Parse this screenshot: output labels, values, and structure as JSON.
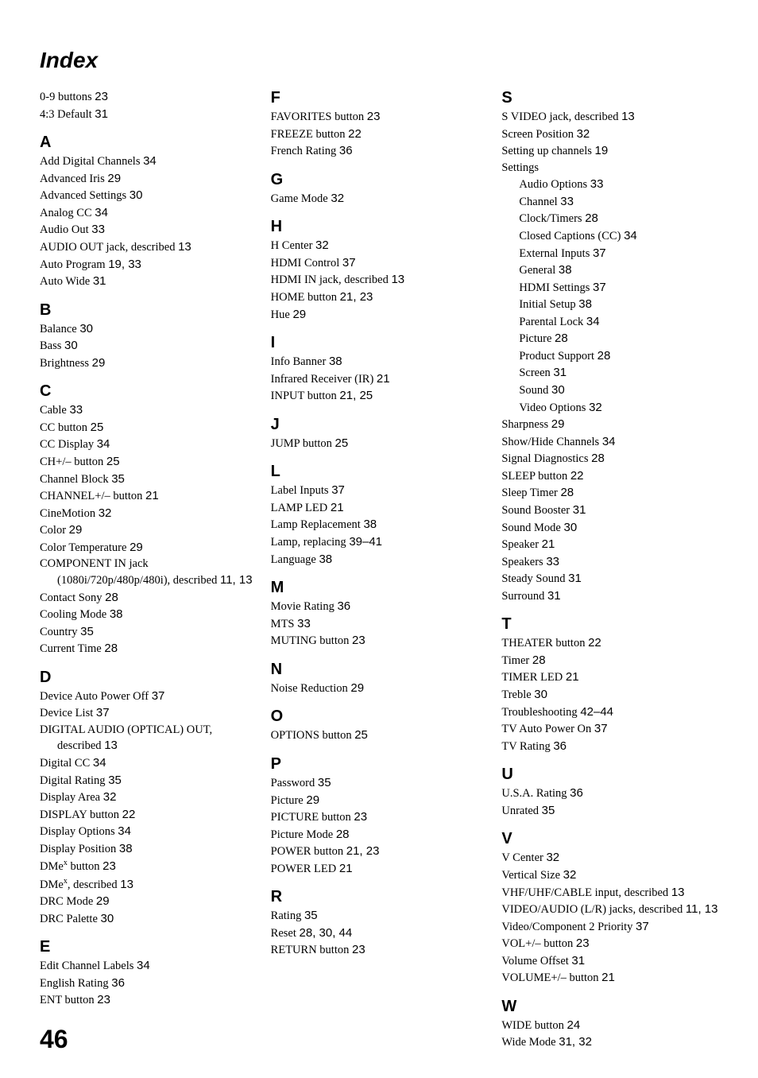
{
  "title": "Index",
  "pageNumber": "46",
  "columns": [
    {
      "blocks": [
        {
          "type": "entries_nolet",
          "entries": [
            {
              "t": "0-9 buttons ",
              "p": "23"
            },
            {
              "t": "4:3 Default ",
              "p": "31"
            }
          ]
        },
        {
          "type": "letter",
          "label": "A",
          "entries": [
            {
              "t": "Add Digital Channels ",
              "p": "34"
            },
            {
              "t": "Advanced Iris ",
              "p": "29"
            },
            {
              "t": "Advanced Settings ",
              "p": "30"
            },
            {
              "t": "Analog CC ",
              "p": "34"
            },
            {
              "t": "Audio Out ",
              "p": "33"
            },
            {
              "t": "AUDIO OUT jack, described ",
              "p": "13"
            },
            {
              "t": "Auto Program ",
              "p": "19, 33"
            },
            {
              "t": "Auto Wide ",
              "p": "31"
            }
          ]
        },
        {
          "type": "letter",
          "label": "B",
          "entries": [
            {
              "t": "Balance ",
              "p": "30"
            },
            {
              "t": "Bass ",
              "p": "30"
            },
            {
              "t": "Brightness ",
              "p": "29"
            }
          ]
        },
        {
          "type": "letter",
          "label": "C",
          "entries": [
            {
              "t": "Cable ",
              "p": "33"
            },
            {
              "t": "CC button ",
              "p": "25"
            },
            {
              "t": "CC Display ",
              "p": "34"
            },
            {
              "t": "CH+/– button ",
              "p": "25"
            },
            {
              "t": "Channel Block ",
              "p": "35"
            },
            {
              "t": "CHANNEL+/– button ",
              "p": "21"
            },
            {
              "t": "CineMotion ",
              "p": "32"
            },
            {
              "t": "Color ",
              "p": "29"
            },
            {
              "t": "Color Temperature ",
              "p": "29"
            },
            {
              "t": "COMPONENT IN jack (1080i/720p/480p/480i), described ",
              "p": "11, 13",
              "hang": true
            },
            {
              "t": "Contact Sony ",
              "p": "28"
            },
            {
              "t": "Cooling Mode ",
              "p": "38"
            },
            {
              "t": "Country ",
              "p": "35"
            },
            {
              "t": "Current Time ",
              "p": "28"
            }
          ]
        },
        {
          "type": "letter",
          "label": "D",
          "entries": [
            {
              "t": "Device Auto Power Off ",
              "p": "37"
            },
            {
              "t": "Device List ",
              "p": "37"
            },
            {
              "t": "DIGITAL AUDIO (OPTICAL) OUT, described ",
              "p": "13",
              "hang": true
            },
            {
              "t": "Digital CC ",
              "p": "34"
            },
            {
              "t": "Digital Rating ",
              "p": "35"
            },
            {
              "t": "Display Area ",
              "p": "32"
            },
            {
              "t": "DISPLAY button ",
              "p": "22"
            },
            {
              "t": "Display Options ",
              "p": "34"
            },
            {
              "t": "Display Position ",
              "p": "38"
            },
            {
              "html": "DMe<sup>x</sup> button ",
              "p": "23"
            },
            {
              "html": "DMe<sup>x</sup>, described ",
              "p": "13"
            },
            {
              "t": "DRC Mode ",
              "p": "29"
            },
            {
              "t": "DRC Palette ",
              "p": "30"
            }
          ]
        },
        {
          "type": "letter",
          "label": "E",
          "entries": [
            {
              "t": "Edit Channel Labels ",
              "p": "34"
            },
            {
              "t": "English Rating ",
              "p": "36"
            },
            {
              "t": "ENT button ",
              "p": "23"
            }
          ]
        }
      ]
    },
    {
      "blocks": [
        {
          "type": "letter",
          "label": "F",
          "first": true,
          "entries": [
            {
              "t": "FAVORITES button ",
              "p": "23"
            },
            {
              "t": "FREEZE button ",
              "p": "22"
            },
            {
              "t": "French Rating ",
              "p": "36"
            }
          ]
        },
        {
          "type": "letter",
          "label": "G",
          "entries": [
            {
              "t": "Game Mode ",
              "p": "32"
            }
          ]
        },
        {
          "type": "letter",
          "label": "H",
          "entries": [
            {
              "t": "H Center ",
              "p": "32"
            },
            {
              "t": "HDMI Control ",
              "p": "37"
            },
            {
              "t": "HDMI IN jack, described ",
              "p": "13"
            },
            {
              "t": "HOME button ",
              "p": "21, 23"
            },
            {
              "t": "Hue ",
              "p": "29"
            }
          ]
        },
        {
          "type": "letter",
          "label": "I",
          "entries": [
            {
              "t": "Info Banner ",
              "p": "38"
            },
            {
              "t": "Infrared Receiver (IR) ",
              "p": "21"
            },
            {
              "t": "INPUT button ",
              "p": "21, 25"
            }
          ]
        },
        {
          "type": "letter",
          "label": "J",
          "entries": [
            {
              "t": "JUMP button ",
              "p": "25"
            }
          ]
        },
        {
          "type": "letter",
          "label": "L",
          "entries": [
            {
              "t": "Label Inputs ",
              "p": "37"
            },
            {
              "t": "LAMP LED ",
              "p": "21"
            },
            {
              "t": "Lamp Replacement ",
              "p": "38"
            },
            {
              "t": "Lamp, replacing ",
              "p": "39–41"
            },
            {
              "t": "Language ",
              "p": "38"
            }
          ]
        },
        {
          "type": "letter",
          "label": "M",
          "entries": [
            {
              "t": "Movie Rating ",
              "p": "36"
            },
            {
              "t": "MTS ",
              "p": "33"
            },
            {
              "t": "MUTING button ",
              "p": "23"
            }
          ]
        },
        {
          "type": "letter",
          "label": "N",
          "entries": [
            {
              "t": "Noise Reduction ",
              "p": "29"
            }
          ]
        },
        {
          "type": "letter",
          "label": "O",
          "entries": [
            {
              "t": "OPTIONS button ",
              "p": "25"
            }
          ]
        },
        {
          "type": "letter",
          "label": "P",
          "entries": [
            {
              "t": "Password ",
              "p": "35"
            },
            {
              "t": "Picture ",
              "p": "29"
            },
            {
              "t": "PICTURE button ",
              "p": "23"
            },
            {
              "t": "Picture Mode ",
              "p": "28"
            },
            {
              "t": "POWER button ",
              "p": "21, 23"
            },
            {
              "t": "POWER LED ",
              "p": "21"
            }
          ]
        },
        {
          "type": "letter",
          "label": "R",
          "entries": [
            {
              "t": "Rating ",
              "p": "35"
            },
            {
              "t": "Reset ",
              "p": "28, 30, 44"
            },
            {
              "t": "RETURN button ",
              "p": "23"
            }
          ]
        }
      ]
    },
    {
      "blocks": [
        {
          "type": "letter",
          "label": "S",
          "first": true,
          "entries": [
            {
              "t": "S VIDEO jack, described ",
              "p": "13"
            },
            {
              "t": "Screen Position ",
              "p": "32"
            },
            {
              "t": "Setting up channels ",
              "p": "19"
            },
            {
              "t": "Settings"
            },
            {
              "t": "Audio Options ",
              "p": "33",
              "sub": true
            },
            {
              "t": "Channel ",
              "p": "33",
              "sub": true
            },
            {
              "t": "Clock/Timers ",
              "p": "28",
              "sub": true
            },
            {
              "t": "Closed Captions (CC) ",
              "p": "34",
              "sub": true
            },
            {
              "t": "External Inputs ",
              "p": "37",
              "sub": true
            },
            {
              "t": "General ",
              "p": "38",
              "sub": true
            },
            {
              "t": "HDMI Settings ",
              "p": "37",
              "sub": true
            },
            {
              "t": "Initial Setup ",
              "p": "38",
              "sub": true
            },
            {
              "t": "Parental Lock ",
              "p": "34",
              "sub": true
            },
            {
              "t": "Picture ",
              "p": "28",
              "sub": true
            },
            {
              "t": "Product Support ",
              "p": "28",
              "sub": true
            },
            {
              "t": "Screen ",
              "p": "31",
              "sub": true
            },
            {
              "t": "Sound ",
              "p": "30",
              "sub": true
            },
            {
              "t": "Video Options ",
              "p": "32",
              "sub": true
            },
            {
              "t": "Sharpness ",
              "p": "29"
            },
            {
              "t": "Show/Hide Channels ",
              "p": "34"
            },
            {
              "t": "Signal Diagnostics ",
              "p": "28"
            },
            {
              "t": "SLEEP button ",
              "p": "22"
            },
            {
              "t": "Sleep Timer ",
              "p": "28"
            },
            {
              "t": "Sound Booster ",
              "p": "31"
            },
            {
              "t": "Sound Mode ",
              "p": "30"
            },
            {
              "t": "Speaker ",
              "p": "21"
            },
            {
              "t": "Speakers ",
              "p": "33"
            },
            {
              "t": "Steady Sound ",
              "p": "31"
            },
            {
              "t": "Surround ",
              "p": "31"
            }
          ]
        },
        {
          "type": "letter",
          "label": "T",
          "entries": [
            {
              "t": "THEATER button ",
              "p": "22"
            },
            {
              "t": "Timer ",
              "p": "28"
            },
            {
              "t": "TIMER LED ",
              "p": "21"
            },
            {
              "t": "Treble ",
              "p": "30"
            },
            {
              "t": "Troubleshooting ",
              "p": "42–44"
            },
            {
              "t": "TV Auto Power On ",
              "p": "37"
            },
            {
              "t": "TV Rating ",
              "p": "36"
            }
          ]
        },
        {
          "type": "letter",
          "label": "U",
          "entries": [
            {
              "t": "U.S.A. Rating ",
              "p": "36"
            },
            {
              "t": "Unrated ",
              "p": "35"
            }
          ]
        },
        {
          "type": "letter",
          "label": "V",
          "entries": [
            {
              "t": "V Center ",
              "p": "32"
            },
            {
              "t": "Vertical Size ",
              "p": "32"
            },
            {
              "t": "VHF/UHF/CABLE input, described ",
              "p": "13"
            },
            {
              "t": "VIDEO/AUDIO (L/R) jacks, described ",
              "p": "11, 13",
              "hang": true
            },
            {
              "t": "Video/Component 2 Priority ",
              "p": "37"
            },
            {
              "t": "VOL+/– button ",
              "p": "23"
            },
            {
              "t": "Volume Offset ",
              "p": "31"
            },
            {
              "t": "VOLUME+/– button ",
              "p": "21"
            }
          ]
        },
        {
          "type": "letter",
          "label": "W",
          "entries": [
            {
              "t": "WIDE button ",
              "p": "24"
            },
            {
              "t": "Wide Mode ",
              "p": "31, 32"
            }
          ]
        }
      ]
    }
  ]
}
